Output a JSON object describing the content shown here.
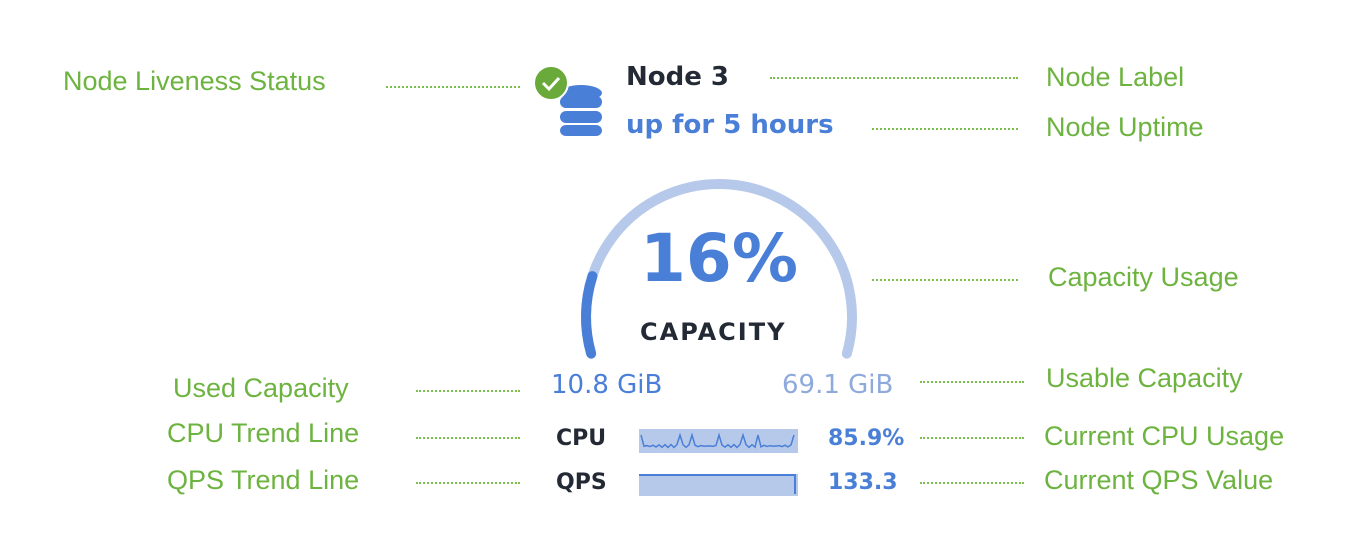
{
  "node": {
    "label": "Node 3",
    "uptime": "up for 5 hours",
    "status": "live",
    "status_icon": "check-circle-icon",
    "node_icon": "database-icon"
  },
  "capacity": {
    "percent_label": "16%",
    "percent": 16,
    "caption": "CAPACITY",
    "used": "10.8 GiB",
    "usable": "69.1 GiB"
  },
  "metrics": [
    {
      "label": "CPU",
      "value": "85.9%"
    },
    {
      "label": "QPS",
      "value": "133.3"
    }
  ],
  "annotations": {
    "liveness": "Node Liveness Status",
    "label": "Node Label",
    "uptime": "Node Uptime",
    "capacity_usage": "Capacity Usage",
    "used_capacity": "Used Capacity",
    "usable_capacity": "Usable Capacity",
    "cpu_trend": "CPU Trend Line",
    "cpu_current": "Current CPU Usage",
    "qps_trend": "QPS Trend Line",
    "qps_current": "Current QPS Value"
  },
  "colors": {
    "annotation": "#6db33f",
    "accent": "#4a7fd8",
    "arc_track": "#b7c9ea",
    "ok": "#6aaa3a"
  }
}
